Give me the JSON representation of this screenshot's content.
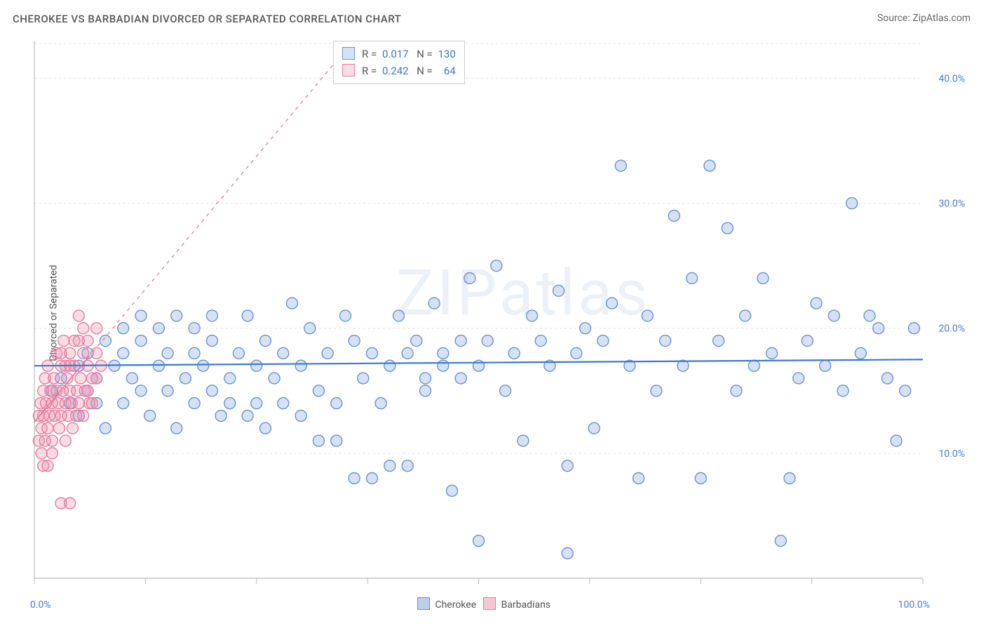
{
  "title": "CHEROKEE VS BARBADIAN DIVORCED OR SEPARATED CORRELATION CHART",
  "source_prefix": "Source: ",
  "source_name": "ZipAtlas.com",
  "ylabel": "Divorced or Separated",
  "watermark": "ZIPatlas",
  "chart": {
    "type": "scatter",
    "x_min": 0,
    "x_max": 100,
    "y_min": 0,
    "y_max": 43,
    "x_ticks_major": [
      0,
      100
    ],
    "x_ticks_minor": [
      12.5,
      25,
      37.5,
      50,
      62.5,
      75,
      87.5
    ],
    "y_ticks": [
      10,
      20,
      30,
      40
    ],
    "y_tick_labels": [
      "10.0%",
      "20.0%",
      "30.0%",
      "40.0%"
    ],
    "x_tick_labels": [
      "0.0%",
      "100.0%"
    ],
    "background": "#ffffff",
    "grid_color": "#e2e2e2",
    "grid_dash": "3 4",
    "axis_color": "#bbbbbb",
    "axis_label_color": "#4a7bd0",
    "marker_radius": 8,
    "marker_stroke_width": 1.4,
    "series": [
      {
        "name": "Cherokee",
        "fill": "rgba(120,160,220,0.30)",
        "stroke": "#6a93cf",
        "r_value": "0.017",
        "n_value": "130",
        "trend": {
          "slope": 0.005,
          "intercept": 17.0,
          "solid_until": 100,
          "stroke": "#3b78d6",
          "width": 2.2
        },
        "points": [
          [
            2,
            15
          ],
          [
            3,
            16
          ],
          [
            4,
            14
          ],
          [
            5,
            17
          ],
          [
            5,
            13
          ],
          [
            6,
            18
          ],
          [
            6,
            15
          ],
          [
            7,
            14
          ],
          [
            7,
            16
          ],
          [
            8,
            19
          ],
          [
            8,
            12
          ],
          [
            9,
            17
          ],
          [
            10,
            18
          ],
          [
            10,
            14
          ],
          [
            11,
            16
          ],
          [
            12,
            15
          ],
          [
            12,
            19
          ],
          [
            13,
            13
          ],
          [
            14,
            17
          ],
          [
            15,
            18
          ],
          [
            15,
            15
          ],
          [
            16,
            12
          ],
          [
            17,
            16
          ],
          [
            18,
            18
          ],
          [
            18,
            14
          ],
          [
            19,
            17
          ],
          [
            20,
            15
          ],
          [
            20,
            19
          ],
          [
            21,
            13
          ],
          [
            22,
            16
          ],
          [
            23,
            18
          ],
          [
            24,
            21
          ],
          [
            25,
            17
          ],
          [
            25,
            14
          ],
          [
            26,
            19
          ],
          [
            27,
            16
          ],
          [
            28,
            18
          ],
          [
            29,
            22
          ],
          [
            30,
            17
          ],
          [
            31,
            20
          ],
          [
            32,
            15
          ],
          [
            33,
            18
          ],
          [
            34,
            11
          ],
          [
            35,
            21
          ],
          [
            36,
            19
          ],
          [
            37,
            16
          ],
          [
            38,
            18
          ],
          [
            39,
            14
          ],
          [
            40,
            17
          ],
          [
            41,
            21
          ],
          [
            42,
            9
          ],
          [
            43,
            19
          ],
          [
            44,
            15
          ],
          [
            45,
            22
          ],
          [
            46,
            18
          ],
          [
            47,
            7
          ],
          [
            48,
            16
          ],
          [
            49,
            24
          ],
          [
            50,
            17
          ],
          [
            50,
            3
          ],
          [
            51,
            19
          ],
          [
            52,
            25
          ],
          [
            53,
            15
          ],
          [
            54,
            18
          ],
          [
            55,
            11
          ],
          [
            56,
            21
          ],
          [
            57,
            19
          ],
          [
            58,
            17
          ],
          [
            59,
            23
          ],
          [
            60,
            2
          ],
          [
            60,
            9
          ],
          [
            61,
            18
          ],
          [
            62,
            20
          ],
          [
            63,
            12
          ],
          [
            64,
            19
          ],
          [
            65,
            22
          ],
          [
            66,
            33
          ],
          [
            67,
            17
          ],
          [
            68,
            8
          ],
          [
            69,
            21
          ],
          [
            70,
            15
          ],
          [
            71,
            19
          ],
          [
            72,
            29
          ],
          [
            73,
            17
          ],
          [
            74,
            24
          ],
          [
            75,
            8
          ],
          [
            76,
            33
          ],
          [
            77,
            19
          ],
          [
            78,
            28
          ],
          [
            79,
            15
          ],
          [
            80,
            21
          ],
          [
            81,
            17
          ],
          [
            82,
            24
          ],
          [
            83,
            18
          ],
          [
            84,
            3
          ],
          [
            85,
            8
          ],
          [
            86,
            16
          ],
          [
            87,
            19
          ],
          [
            88,
            22
          ],
          [
            89,
            17
          ],
          [
            90,
            21
          ],
          [
            91,
            15
          ],
          [
            92,
            30
          ],
          [
            93,
            18
          ],
          [
            94,
            21
          ],
          [
            95,
            20
          ],
          [
            96,
            16
          ],
          [
            97,
            11
          ],
          [
            98,
            15
          ],
          [
            99,
            20
          ],
          [
            10,
            20
          ],
          [
            12,
            21
          ],
          [
            14,
            20
          ],
          [
            16,
            21
          ],
          [
            18,
            20
          ],
          [
            20,
            21
          ],
          [
            22,
            14
          ],
          [
            24,
            13
          ],
          [
            26,
            12
          ],
          [
            28,
            14
          ],
          [
            30,
            13
          ],
          [
            32,
            11
          ],
          [
            34,
            14
          ],
          [
            36,
            8
          ],
          [
            38,
            8
          ],
          [
            40,
            9
          ],
          [
            42,
            18
          ],
          [
            44,
            16
          ],
          [
            46,
            17
          ],
          [
            48,
            19
          ]
        ]
      },
      {
        "name": "Barbadians",
        "fill": "rgba(240,140,170,0.30)",
        "stroke": "#e37ea0",
        "r_value": "0.242",
        "n_value": "64",
        "trend": {
          "slope": 0.85,
          "intercept": 12.5,
          "solid_until": 6,
          "dash_until": 60,
          "stroke": "#e86f98",
          "width": 1.6
        },
        "points": [
          [
            0.5,
            13
          ],
          [
            0.7,
            14
          ],
          [
            0.8,
            12
          ],
          [
            1,
            15
          ],
          [
            1,
            13
          ],
          [
            1.2,
            16
          ],
          [
            1.3,
            14
          ],
          [
            1.5,
            12
          ],
          [
            1.5,
            17
          ],
          [
            1.7,
            13
          ],
          [
            1.8,
            15
          ],
          [
            2,
            14
          ],
          [
            2,
            11
          ],
          [
            2.2,
            16
          ],
          [
            2.3,
            13
          ],
          [
            2.5,
            15
          ],
          [
            2.5,
            18
          ],
          [
            2.7,
            14
          ],
          [
            2.8,
            12
          ],
          [
            3,
            17
          ],
          [
            3,
            13
          ],
          [
            3.2,
            15
          ],
          [
            3.3,
            19
          ],
          [
            3.5,
            14
          ],
          [
            3.5,
            11
          ],
          [
            3.7,
            16
          ],
          [
            3.8,
            13
          ],
          [
            4,
            15
          ],
          [
            4,
            18
          ],
          [
            4.2,
            14
          ],
          [
            4.3,
            12
          ],
          [
            4.5,
            17
          ],
          [
            4.5,
            19
          ],
          [
            4.7,
            13
          ],
          [
            4.8,
            15
          ],
          [
            5,
            14
          ],
          [
            5,
            21
          ],
          [
            5.2,
            16
          ],
          [
            5.5,
            18
          ],
          [
            5.5,
            13
          ],
          [
            5.7,
            15
          ],
          [
            6,
            17
          ],
          [
            6,
            19
          ],
          [
            6.2,
            14
          ],
          [
            6.5,
            16
          ],
          [
            7,
            18
          ],
          [
            7,
            20
          ],
          [
            1,
            9
          ],
          [
            1.5,
            9
          ],
          [
            3,
            6
          ],
          [
            4,
            6
          ],
          [
            2,
            10
          ],
          [
            0.5,
            11
          ],
          [
            0.8,
            10
          ],
          [
            1.2,
            11
          ],
          [
            3,
            18
          ],
          [
            3.5,
            17
          ],
          [
            4,
            17
          ],
          [
            5,
            19
          ],
          [
            5.5,
            20
          ],
          [
            6,
            15
          ],
          [
            6.5,
            14
          ],
          [
            7,
            16
          ],
          [
            7.5,
            17
          ]
        ]
      }
    ],
    "legend_items": [
      {
        "label": "Cherokee",
        "swatch_fill": "rgba(120,160,220,0.5)",
        "swatch_stroke": "#6a93cf"
      },
      {
        "label": "Barbadians",
        "swatch_fill": "rgba(240,140,170,0.5)",
        "swatch_stroke": "#e37ea0"
      }
    ]
  }
}
